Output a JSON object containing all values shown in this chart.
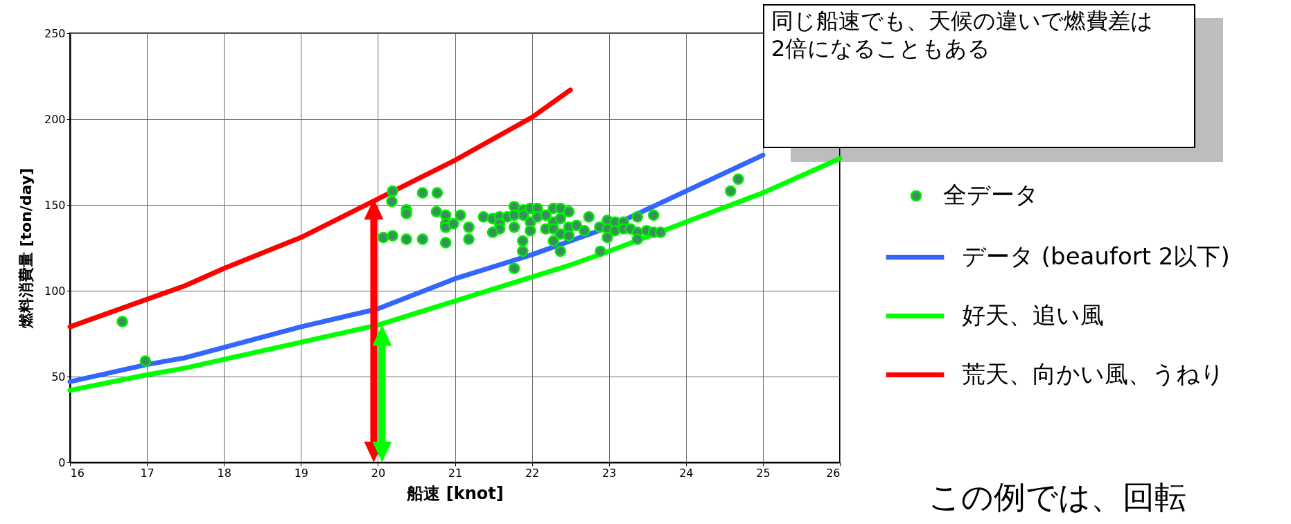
{
  "chart_data": {
    "type": "line",
    "xlabel": "船速 [knot]",
    "ylabel": "燃料消費量 [ton/day]",
    "xlim": [
      16,
      26
    ],
    "ylim": [
      0,
      250
    ],
    "xticks": [
      16,
      17,
      18,
      19,
      20,
      21,
      22,
      23,
      24,
      25,
      26
    ],
    "yticks": [
      0,
      50,
      100,
      150,
      200,
      250
    ],
    "grid": true,
    "legend": "right",
    "series": [
      {
        "name": "全データ",
        "type": "scatter",
        "color": "#3a8f5e",
        "x": [
          20.19,
          20.18,
          20.37,
          20.37,
          20.58,
          20.77,
          20.76,
          20.88,
          20.88,
          20.88,
          20.98,
          21.07,
          21.18,
          20.07,
          20.19,
          20.37,
          20.58,
          20.88,
          21.18,
          21.37,
          21.49,
          21.58,
          21.58,
          21.58,
          21.49,
          21.68,
          21.77,
          21.77,
          21.77,
          21.89,
          21.89,
          21.98,
          21.98,
          21.98,
          22.07,
          22.07,
          21.88,
          21.88,
          21.77,
          22.18,
          22.18,
          22.28,
          22.28,
          22.28,
          22.28,
          22.37,
          22.37,
          22.37,
          22.37,
          22.48,
          22.48,
          22.48,
          22.58,
          22.68,
          22.74,
          22.88,
          22.98,
          22.98,
          22.98,
          23.08,
          23.08,
          23.19,
          23.19,
          23.28,
          23.37,
          23.37,
          23.37,
          23.49,
          23.58,
          23.58,
          23.67,
          22.89,
          24.68,
          24.58,
          16.68,
          16.98
        ],
        "values": [
          158,
          152,
          147,
          145,
          157,
          157,
          146,
          144,
          139,
          137,
          139,
          144,
          137,
          131,
          132,
          130,
          130,
          128,
          130,
          143,
          142,
          143,
          139,
          136,
          134,
          143,
          149,
          144,
          137,
          147,
          144,
          148,
          140,
          135,
          148,
          143,
          129,
          123,
          113,
          144,
          136,
          148,
          140,
          136,
          129,
          148,
          142,
          133,
          123,
          146,
          137,
          132,
          138,
          135,
          143,
          137,
          141,
          136,
          131,
          140,
          135,
          140,
          136,
          136,
          143,
          134,
          130,
          135,
          144,
          134,
          134,
          123,
          165,
          158,
          82,
          59
        ]
      },
      {
        "name": "データ (beaufort 2以下)",
        "color": "#3366ff",
        "x": [
          16,
          17,
          17.5,
          18,
          19,
          20,
          21,
          22,
          23,
          24,
          25
        ],
        "values": [
          47,
          57,
          61,
          67,
          79,
          89.5,
          107,
          121,
          137,
          158,
          179
        ]
      },
      {
        "name": "好天、追い風",
        "color": "#00ff00",
        "x": [
          16,
          17,
          17.5,
          18,
          19,
          20,
          21,
          22,
          22.5,
          23,
          24,
          25,
          26
        ],
        "values": [
          42,
          51,
          55,
          60,
          70,
          80,
          94,
          108,
          115,
          123,
          140,
          157,
          177
        ]
      },
      {
        "name": "荒天、向かい風、うねり",
        "color": "#ff0000",
        "x": [
          16,
          17,
          17.5,
          18,
          19,
          20,
          21,
          22,
          22.5
        ],
        "values": [
          79,
          95,
          103,
          113,
          131,
          153.5,
          176,
          201,
          217
        ]
      }
    ],
    "annotations": [
      "同じ船速でも、天候の違いで燃費差は2倍になることもある",
      "この例では、回転"
    ]
  }
}
